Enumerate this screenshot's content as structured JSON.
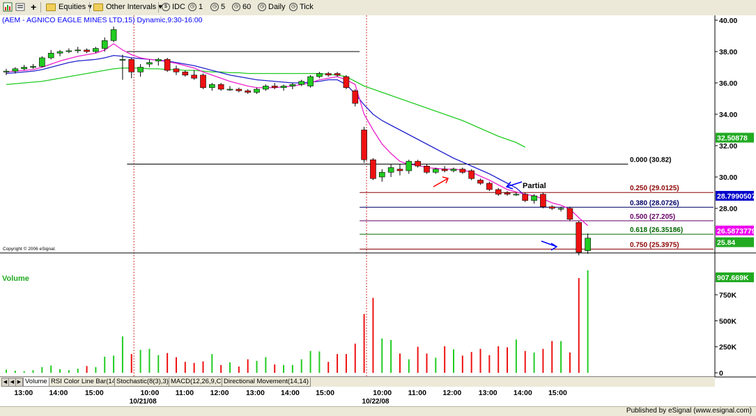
{
  "toolbar": {
    "equities_label": "Equities",
    "other_intervals_label": "Other Intervals",
    "idc_label": "IDC",
    "interval_1": "1",
    "interval_5": "5",
    "interval_60": "60",
    "daily_label": "Daily",
    "tick_label": "Tick"
  },
  "chart": {
    "title": "(AEM - AGNICO EAGLE MINES LTD,15) Dynamic,9:30-16:00",
    "copyright": "Copyright © 2006 eSignal.",
    "volume_label": "Volume",
    "annotation_partial": "Partial"
  },
  "chart_data": {
    "type": "candlestick",
    "price_axis": {
      "min": 25.0,
      "max": 40.4,
      "ticks": [
        "40.00",
        "38.00",
        "36.00",
        "34.00",
        "32.00",
        "30.00",
        "28.00"
      ]
    },
    "volume_axis": {
      "min": 0,
      "max": 1000,
      "unit": "K",
      "ticks": [
        "750K",
        "500K",
        "250K",
        "0"
      ]
    },
    "x_ticks": [
      "13:00",
      "14:00",
      "15:00",
      "10:00",
      "11:00",
      "12:00",
      "13:00",
      "14:00",
      "15:00",
      "10:00",
      "11:00",
      "12:00",
      "13:00",
      "14:00",
      "15:00"
    ],
    "date_labels": [
      {
        "text": "10/21/08",
        "bar": 14.5
      },
      {
        "text": "10/22/08",
        "bar": 40.5
      }
    ],
    "candles": [
      {
        "o": 36.7,
        "h": 36.9,
        "l": 36.5,
        "c": 36.75
      },
      {
        "o": 36.75,
        "h": 37.0,
        "l": 36.6,
        "c": 36.9
      },
      {
        "o": 36.9,
        "h": 37.15,
        "l": 36.8,
        "c": 37.0
      },
      {
        "o": 37.0,
        "h": 37.2,
        "l": 36.9,
        "c": 37.05
      },
      {
        "o": 37.05,
        "h": 37.7,
        "l": 37.0,
        "c": 37.6
      },
      {
        "o": 37.6,
        "h": 38.1,
        "l": 37.5,
        "c": 37.9
      },
      {
        "o": 37.9,
        "h": 38.1,
        "l": 37.7,
        "c": 38.0
      },
      {
        "o": 38.0,
        "h": 38.2,
        "l": 37.9,
        "c": 38.05
      },
      {
        "o": 38.05,
        "h": 38.3,
        "l": 37.9,
        "c": 38.1
      },
      {
        "o": 38.1,
        "h": 38.2,
        "l": 37.9,
        "c": 38.0
      },
      {
        "o": 38.0,
        "h": 38.3,
        "l": 37.9,
        "c": 38.2
      },
      {
        "o": 38.2,
        "h": 38.9,
        "l": 38.0,
        "c": 38.7
      },
      {
        "o": 38.7,
        "h": 39.6,
        "l": 38.6,
        "c": 39.4
      },
      {
        "o": 37.5,
        "h": 37.8,
        "l": 36.2,
        "c": 37.5
      },
      {
        "o": 37.5,
        "h": 37.6,
        "l": 36.3,
        "c": 36.7
      },
      {
        "o": 36.7,
        "h": 37.2,
        "l": 36.4,
        "c": 37.0
      },
      {
        "o": 37.2,
        "h": 37.5,
        "l": 37.0,
        "c": 37.3
      },
      {
        "o": 37.4,
        "h": 37.6,
        "l": 37.1,
        "c": 37.5
      },
      {
        "o": 37.5,
        "h": 37.6,
        "l": 36.7,
        "c": 36.8
      },
      {
        "o": 36.9,
        "h": 37.1,
        "l": 36.5,
        "c": 36.7
      },
      {
        "o": 36.7,
        "h": 36.8,
        "l": 36.4,
        "c": 36.5
      },
      {
        "o": 36.5,
        "h": 36.8,
        "l": 36.2,
        "c": 36.3
      },
      {
        "o": 36.5,
        "h": 36.6,
        "l": 35.6,
        "c": 35.7
      },
      {
        "o": 35.7,
        "h": 36.0,
        "l": 35.5,
        "c": 35.9
      },
      {
        "o": 35.9,
        "h": 36.0,
        "l": 35.5,
        "c": 35.6
      },
      {
        "o": 35.6,
        "h": 35.8,
        "l": 35.5,
        "c": 35.6
      },
      {
        "o": 35.6,
        "h": 35.7,
        "l": 35.4,
        "c": 35.5
      },
      {
        "o": 35.5,
        "h": 35.6,
        "l": 35.3,
        "c": 35.4
      },
      {
        "o": 35.4,
        "h": 35.7,
        "l": 35.3,
        "c": 35.6
      },
      {
        "o": 35.6,
        "h": 35.9,
        "l": 35.5,
        "c": 35.8
      },
      {
        "o": 35.8,
        "h": 36.0,
        "l": 35.6,
        "c": 35.7
      },
      {
        "o": 35.7,
        "h": 35.9,
        "l": 35.5,
        "c": 35.8
      },
      {
        "o": 35.8,
        "h": 36.0,
        "l": 35.6,
        "c": 35.9
      },
      {
        "o": 35.9,
        "h": 36.2,
        "l": 35.8,
        "c": 36.1
      },
      {
        "o": 35.8,
        "h": 36.5,
        "l": 35.7,
        "c": 36.4
      },
      {
        "o": 36.4,
        "h": 36.7,
        "l": 36.3,
        "c": 36.6
      },
      {
        "o": 36.6,
        "h": 36.7,
        "l": 36.4,
        "c": 36.5
      },
      {
        "o": 36.6,
        "h": 36.7,
        "l": 36.4,
        "c": 36.5
      },
      {
        "o": 36.4,
        "h": 36.5,
        "l": 35.6,
        "c": 35.7
      },
      {
        "o": 35.5,
        "h": 35.6,
        "l": 34.5,
        "c": 34.7
      },
      {
        "o": 33.0,
        "h": 33.2,
        "l": 30.9,
        "c": 31.1
      },
      {
        "o": 31.1,
        "h": 31.2,
        "l": 29.8,
        "c": 29.9
      },
      {
        "o": 30.0,
        "h": 30.5,
        "l": 29.7,
        "c": 30.3
      },
      {
        "o": 30.3,
        "h": 30.8,
        "l": 30.0,
        "c": 30.6
      },
      {
        "o": 30.5,
        "h": 30.8,
        "l": 30.1,
        "c": 30.4
      },
      {
        "o": 30.4,
        "h": 31.1,
        "l": 30.2,
        "c": 31.0
      },
      {
        "o": 31.0,
        "h": 31.1,
        "l": 30.6,
        "c": 30.7
      },
      {
        "o": 30.7,
        "h": 30.8,
        "l": 30.2,
        "c": 30.3
      },
      {
        "o": 30.3,
        "h": 30.6,
        "l": 30.2,
        "c": 30.5
      },
      {
        "o": 30.5,
        "h": 30.7,
        "l": 30.3,
        "c": 30.4
      },
      {
        "o": 30.4,
        "h": 30.6,
        "l": 30.3,
        "c": 30.5
      },
      {
        "o": 30.5,
        "h": 30.6,
        "l": 30.2,
        "c": 30.3
      },
      {
        "o": 30.4,
        "h": 30.5,
        "l": 29.8,
        "c": 29.9
      },
      {
        "o": 29.8,
        "h": 29.9,
        "l": 29.5,
        "c": 29.6
      },
      {
        "o": 29.6,
        "h": 29.7,
        "l": 29.1,
        "c": 29.2
      },
      {
        "o": 29.2,
        "h": 29.3,
        "l": 28.8,
        "c": 28.9
      },
      {
        "o": 29.0,
        "h": 29.1,
        "l": 28.8,
        "c": 28.9
      },
      {
        "o": 28.9,
        "h": 29.0,
        "l": 28.8,
        "c": 28.9
      },
      {
        "o": 28.9,
        "h": 29.0,
        "l": 28.4,
        "c": 28.5
      },
      {
        "o": 28.5,
        "h": 28.9,
        "l": 28.3,
        "c": 28.8
      },
      {
        "o": 28.9,
        "h": 29.0,
        "l": 28.0,
        "c": 28.1
      },
      {
        "o": 28.1,
        "h": 28.2,
        "l": 27.9,
        "c": 28.0
      },
      {
        "o": 28.0,
        "h": 28.1,
        "l": 27.8,
        "c": 28.0
      },
      {
        "o": 28.0,
        "h": 28.1,
        "l": 27.2,
        "c": 27.3
      },
      {
        "o": 27.1,
        "h": 27.2,
        "l": 25.0,
        "c": 25.2
      },
      {
        "o": 25.3,
        "h": 26.4,
        "l": 25.1,
        "c": 26.1
      }
    ],
    "volume": [
      30,
      20,
      15,
      25,
      55,
      70,
      35,
      25,
      40,
      65,
      55,
      155,
      165,
      350,
      180,
      220,
      230,
      170,
      190,
      150,
      105,
      95,
      110,
      180,
      75,
      100,
      60,
      130,
      115,
      150,
      80,
      75,
      75,
      130,
      210,
      205,
      105,
      180,
      180,
      280,
      565,
      720,
      330,
      315,
      185,
      130,
      250,
      185,
      145,
      255,
      225,
      165,
      200,
      230,
      170,
      255,
      245,
      320,
      210,
      195,
      230,
      305,
      305,
      195,
      910,
      985
    ],
    "ma_magenta": [
      36.7,
      36.75,
      36.8,
      36.85,
      37.0,
      37.2,
      37.4,
      37.55,
      37.7,
      37.8,
      37.9,
      38.1,
      38.5,
      38.1,
      37.8,
      37.6,
      37.5,
      37.45,
      37.35,
      37.25,
      37.1,
      36.95,
      36.7,
      36.5,
      36.3,
      36.1,
      35.95,
      35.8,
      35.7,
      35.7,
      35.7,
      35.75,
      35.8,
      35.9,
      36.0,
      36.2,
      36.3,
      36.4,
      36.2,
      35.9,
      34.0,
      33.0,
      32.1,
      31.5,
      31.0,
      30.8,
      30.75,
      30.6,
      30.55,
      30.5,
      30.5,
      30.45,
      30.3,
      30.05,
      29.8,
      29.5,
      29.2,
      29.05,
      28.9,
      28.8,
      28.6,
      28.35,
      28.2,
      27.95,
      27.4,
      26.9
    ],
    "ma_blue": [
      36.6,
      36.65,
      36.7,
      36.75,
      36.85,
      37.0,
      37.15,
      37.3,
      37.4,
      37.45,
      37.5,
      37.6,
      37.75,
      37.7,
      37.6,
      37.55,
      37.5,
      37.45,
      37.4,
      37.3,
      37.2,
      37.1,
      36.95,
      36.8,
      36.65,
      36.5,
      36.4,
      36.3,
      36.2,
      36.15,
      36.1,
      36.05,
      36.0,
      36.0,
      36.05,
      36.1,
      36.2,
      36.2,
      35.9,
      35.3,
      34.6,
      34.0,
      33.6,
      33.3,
      33.0,
      32.7,
      32.4,
      32.1,
      31.8,
      31.5,
      31.2,
      30.95,
      30.7,
      30.45,
      30.2,
      29.9,
      29.6,
      29.3,
      28.8
    ],
    "ma_green": [
      35.9,
      35.95,
      36.0,
      36.05,
      36.1,
      36.2,
      36.3,
      36.4,
      36.5,
      36.6,
      36.7,
      36.8,
      36.9,
      36.95,
      36.95,
      36.95,
      36.9,
      36.9,
      36.85,
      36.85,
      36.8,
      36.8,
      36.75,
      36.7,
      36.7,
      36.65,
      36.65,
      36.6,
      36.6,
      36.6,
      36.6,
      36.6,
      36.6,
      36.6,
      36.6,
      36.6,
      36.55,
      36.5,
      36.4,
      36.1,
      35.8,
      35.6,
      35.4,
      35.2,
      35.0,
      34.8,
      34.6,
      34.4,
      34.2,
      34.0,
      33.8,
      33.6,
      33.35,
      33.1,
      32.85,
      32.6,
      32.4,
      32.2,
      31.9
    ],
    "reference_lines": [
      {
        "price": 38.0,
        "from_bar": 13.5,
        "to_bar": 39.5,
        "color": "#000000"
      },
      {
        "price": 30.82,
        "from_bar": 13.5,
        "to_bar": 69.5,
        "color": "#000000"
      }
    ],
    "fib_levels": [
      {
        "label": "0.000 (30.82)",
        "price": 30.82,
        "color": "#000000"
      },
      {
        "label": "0.250 (29.0125)",
        "price": 29.0125,
        "color": "#8b0000"
      },
      {
        "label": "0.380 (28.0726)",
        "price": 28.0726,
        "color": "#000066"
      },
      {
        "label": "0.500 (27.205)",
        "price": 27.205,
        "color": "#660066"
      },
      {
        "label": "0.618 (26.35186)",
        "price": 26.35186,
        "color": "#006600"
      },
      {
        "label": "0.750 (25.3975)",
        "price": 25.3975,
        "color": "#8b0000"
      }
    ],
    "price_badges": [
      {
        "text": "32.50878",
        "price": 32.50878,
        "bg": "#22aa22"
      },
      {
        "text": "28.7990507",
        "price": 28.7990507,
        "bg": "#0000cc"
      },
      {
        "text": "26.5873779",
        "price": 26.5873779,
        "bg": "#ee00ee"
      },
      {
        "text": "25.84",
        "price": 25.84,
        "bg": "#22aa22"
      }
    ],
    "volume_badge": {
      "text": "907.669K",
      "value": 907.669,
      "bg": "#22aa22"
    }
  },
  "tabs": [
    "Volume",
    "RSI Color Line Bar(14)",
    "Stochastic(8(3),3)",
    "MACD(12,26,9,C)",
    "Directional Movement(14,14)"
  ],
  "footer": {
    "published": "Published by eSignal (www.esignal.com)"
  }
}
